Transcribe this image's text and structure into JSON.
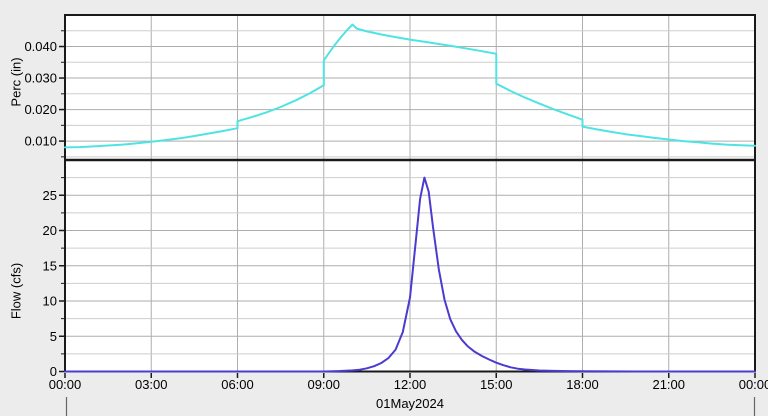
{
  "colors": {
    "background": "#ececec",
    "plot_background": "#ffffff",
    "grid_major": "#aeaeae",
    "grid_minor": "#cdcdcd",
    "frame": "#1a1a1a",
    "perc_line": "#4fe3e3",
    "flow_line": "#4b3bd0",
    "day_tick": "#666666"
  },
  "x_axis": {
    "unit": "hours",
    "range": [
      0,
      24
    ],
    "ticks": [
      {
        "h": 0,
        "label": "00:00"
      },
      {
        "h": 3,
        "label": "03:00"
      },
      {
        "h": 6,
        "label": "06:00"
      },
      {
        "h": 9,
        "label": "09:00"
      },
      {
        "h": 12,
        "label": "12:00"
      },
      {
        "h": 15,
        "label": "15:00"
      },
      {
        "h": 18,
        "label": "18:00"
      },
      {
        "h": 21,
        "label": "21:00"
      },
      {
        "h": 24,
        "label": "00:00"
      }
    ],
    "date_label": "01May2024"
  },
  "chart_data": [
    {
      "type": "line",
      "position": "top",
      "title": "",
      "xlabel": "",
      "ylabel": "Perc (in)",
      "ylim": [
        0.004,
        0.05
      ],
      "grid": true,
      "yticks_major": [
        {
          "v": 0.01,
          "label": "0.010"
        },
        {
          "v": 0.02,
          "label": "0.020"
        },
        {
          "v": 0.03,
          "label": "0.030"
        },
        {
          "v": 0.04,
          "label": "0.040"
        }
      ],
      "yticks_minor": [
        0.005,
        0.015,
        0.025,
        0.035,
        0.045
      ],
      "series": [
        {
          "name": "percolation",
          "color": "#4fe3e3",
          "points": [
            [
              0,
              0.008
            ],
            [
              0.5,
              0.0081
            ],
            [
              1,
              0.0083
            ],
            [
              1.5,
              0.0086
            ],
            [
              2,
              0.0089
            ],
            [
              2.5,
              0.0093
            ],
            [
              3,
              0.0098
            ],
            [
              3.5,
              0.0103
            ],
            [
              4,
              0.0109
            ],
            [
              4.5,
              0.0116
            ],
            [
              5,
              0.0124
            ],
            [
              5.5,
              0.0132
            ],
            [
              6,
              0.0141
            ],
            [
              6,
              0.0163
            ],
            [
              6.5,
              0.0176
            ],
            [
              7,
              0.0191
            ],
            [
              7.5,
              0.0208
            ],
            [
              8,
              0.0228
            ],
            [
              8.5,
              0.0251
            ],
            [
              9,
              0.0277
            ],
            [
              9,
              0.0356
            ],
            [
              9.2,
              0.0382
            ],
            [
              9.4,
              0.0407
            ],
            [
              9.6,
              0.043
            ],
            [
              9.8,
              0.0451
            ],
            [
              10,
              0.047
            ],
            [
              10.15,
              0.0457
            ],
            [
              10.5,
              0.0448
            ],
            [
              11,
              0.0438
            ],
            [
              11.5,
              0.043
            ],
            [
              12,
              0.0422
            ],
            [
              12.5,
              0.0415
            ],
            [
              13,
              0.0408
            ],
            [
              13.5,
              0.0401
            ],
            [
              14,
              0.0393
            ],
            [
              14.5,
              0.0385
            ],
            [
              15,
              0.0377
            ],
            [
              15,
              0.0282
            ],
            [
              15.5,
              0.0259
            ],
            [
              16,
              0.0238
            ],
            [
              16.5,
              0.0219
            ],
            [
              17,
              0.0201
            ],
            [
              17.5,
              0.0184
            ],
            [
              18,
              0.0168
            ],
            [
              18,
              0.0146
            ],
            [
              18.5,
              0.0137
            ],
            [
              19,
              0.0129
            ],
            [
              19.5,
              0.0122
            ],
            [
              20,
              0.0116
            ],
            [
              20.5,
              0.011
            ],
            [
              21,
              0.0105
            ],
            [
              21.5,
              0.01
            ],
            [
              22,
              0.0096
            ],
            [
              22.5,
              0.0092
            ],
            [
              23,
              0.0089
            ],
            [
              23.5,
              0.0087
            ],
            [
              24,
              0.0085
            ]
          ]
        }
      ]
    },
    {
      "type": "line",
      "position": "bottom",
      "title": "",
      "xlabel": "",
      "ylabel": "Flow (cfs)",
      "ylim": [
        0,
        30
      ],
      "grid": true,
      "yticks_major": [
        {
          "v": 0,
          "label": "0"
        },
        {
          "v": 5,
          "label": "5"
        },
        {
          "v": 10,
          "label": "10"
        },
        {
          "v": 15,
          "label": "15"
        },
        {
          "v": 20,
          "label": "20"
        },
        {
          "v": 25,
          "label": "25"
        }
      ],
      "yticks_minor": [
        2.5,
        7.5,
        12.5,
        17.5,
        22.5,
        27.5
      ],
      "series": [
        {
          "name": "flow",
          "color": "#4b3bd0",
          "points": [
            [
              0,
              0
            ],
            [
              9,
              0
            ],
            [
              9.5,
              0.05
            ],
            [
              10,
              0.15
            ],
            [
              10.25,
              0.25
            ],
            [
              10.5,
              0.45
            ],
            [
              10.75,
              0.75
            ],
            [
              11,
              1.2
            ],
            [
              11.25,
              1.9
            ],
            [
              11.5,
              3.1
            ],
            [
              11.75,
              5.6
            ],
            [
              12,
              10.5
            ],
            [
              12.2,
              18.5
            ],
            [
              12.35,
              24.5
            ],
            [
              12.5,
              27.5
            ],
            [
              12.65,
              25.5
            ],
            [
              12.8,
              20.5
            ],
            [
              13,
              14.5
            ],
            [
              13.2,
              10.2
            ],
            [
              13.4,
              7.4
            ],
            [
              13.6,
              5.7
            ],
            [
              13.8,
              4.5
            ],
            [
              14,
              3.6
            ],
            [
              14.25,
              2.8
            ],
            [
              14.5,
              2.2
            ],
            [
              14.75,
              1.7
            ],
            [
              15,
              1.25
            ],
            [
              15.25,
              0.9
            ],
            [
              15.5,
              0.6
            ],
            [
              15.75,
              0.4
            ],
            [
              16,
              0.28
            ],
            [
              16.5,
              0.14
            ],
            [
              17,
              0.08
            ],
            [
              17.5,
              0.05
            ],
            [
              18,
              0.03
            ],
            [
              19,
              0.01
            ],
            [
              20,
              0
            ],
            [
              24,
              0
            ]
          ]
        }
      ]
    }
  ]
}
